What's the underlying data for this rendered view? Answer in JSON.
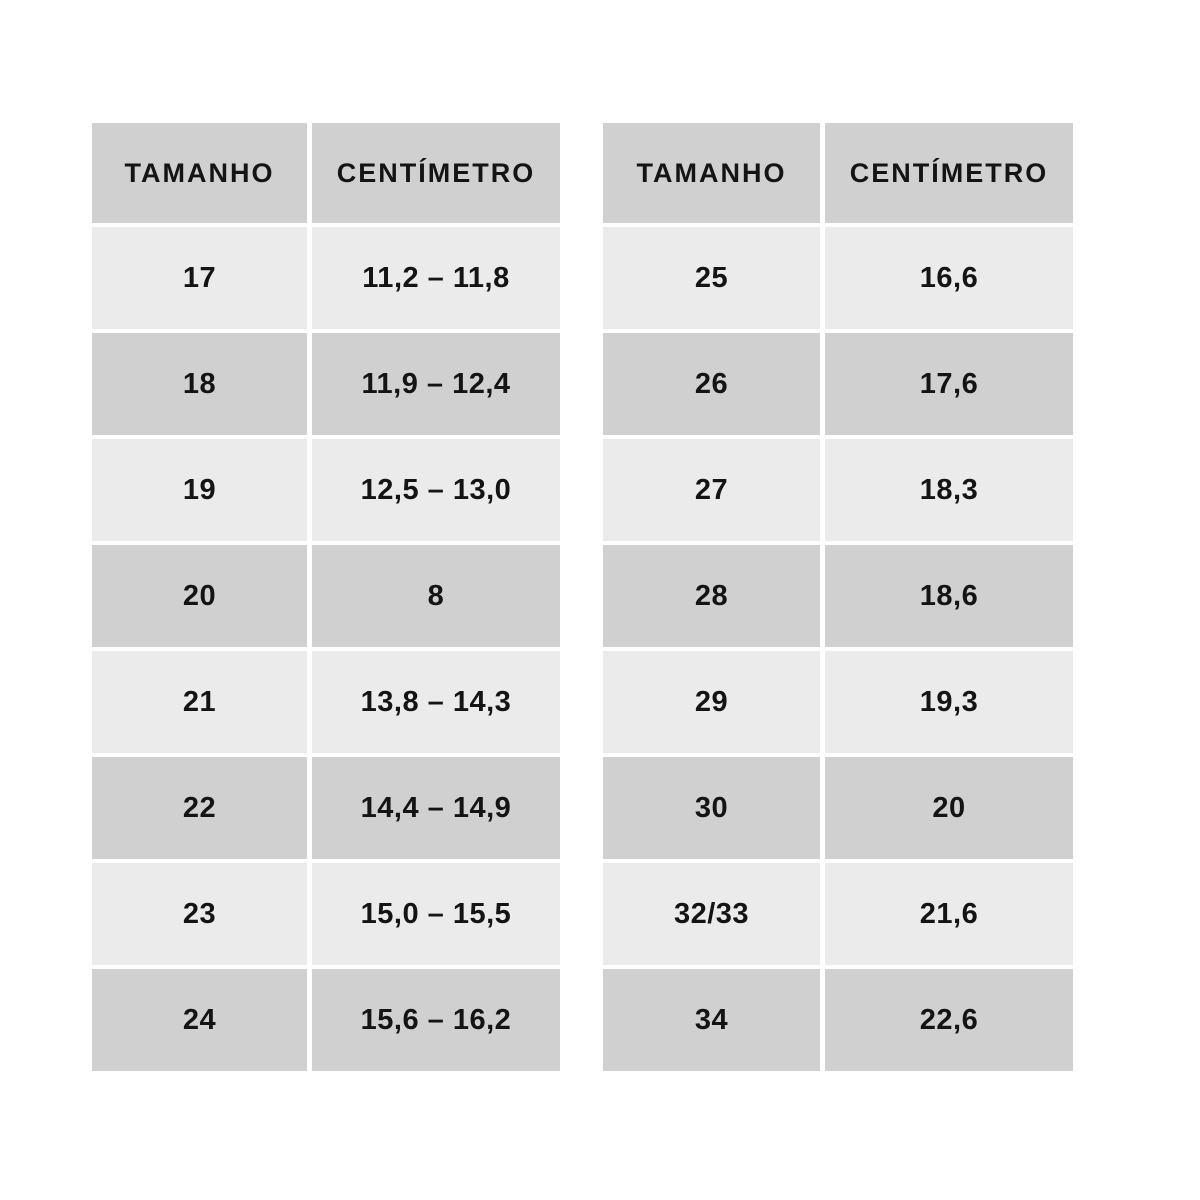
{
  "colors": {
    "background": "#ffffff",
    "header_bg": "#d0d0d0",
    "row_dark_bg": "#d0d0d0",
    "row_light_bg": "#ebebeb",
    "text": "#141414"
  },
  "chart_data": [
    {
      "type": "table",
      "columns": [
        "TAMANHO",
        "CENTÍMETRO"
      ],
      "rows": [
        [
          "17",
          "11,2 – 11,8"
        ],
        [
          "18",
          "11,9 – 12,4"
        ],
        [
          "19",
          "12,5 – 13,0"
        ],
        [
          "20",
          "8"
        ],
        [
          "21",
          "13,8 – 14,3"
        ],
        [
          "22",
          "14,4 – 14,9"
        ],
        [
          "23",
          "15,0 – 15,5"
        ],
        [
          "24",
          "15,6 – 16,2"
        ]
      ]
    },
    {
      "type": "table",
      "columns": [
        "TAMANHO",
        "CENTÍMETRO"
      ],
      "rows": [
        [
          "25",
          "16,6"
        ],
        [
          "26",
          "17,6"
        ],
        [
          "27",
          "18,3"
        ],
        [
          "28",
          "18,6"
        ],
        [
          "29",
          "19,3"
        ],
        [
          "30",
          "20"
        ],
        [
          "32/33",
          "21,6"
        ],
        [
          "34",
          "22,6"
        ]
      ]
    }
  ]
}
